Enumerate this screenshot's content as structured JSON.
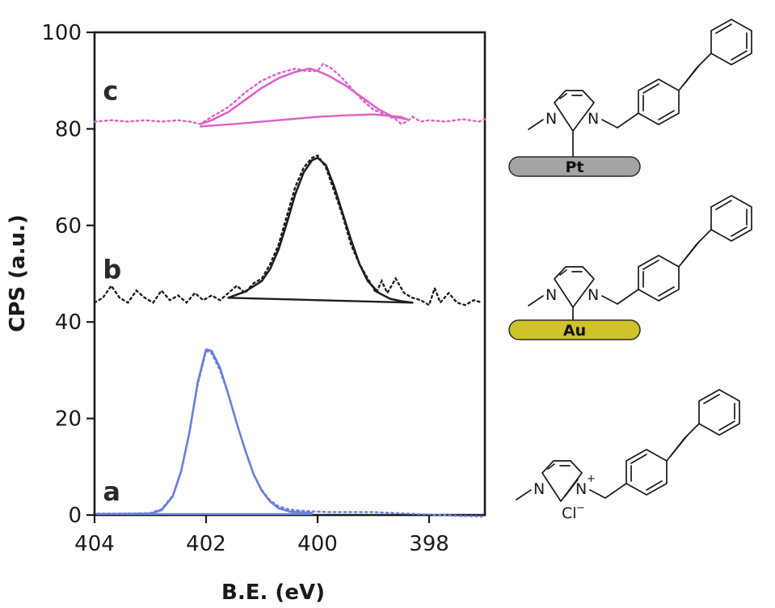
{
  "chart_data": {
    "type": "line",
    "xlabel": "B.E. (eV)",
    "ylabel": "CPS (a.u.)",
    "xlim": [
      404,
      397
    ],
    "ylim": [
      0,
      100
    ],
    "x_reversed": true,
    "xticks": [
      "404",
      "402",
      "400",
      "398"
    ],
    "yticks": [
      "0",
      "20",
      "40",
      "60",
      "80",
      "100"
    ],
    "grid": false,
    "curves": [
      {
        "tag": "a",
        "color": "#6b7fe0",
        "data_label": {
          "x": 403.85,
          "y": 3
        },
        "measured": [
          [
            403.95,
            0.3
          ],
          [
            403.5,
            0.3
          ],
          [
            403.0,
            0.4
          ],
          [
            402.8,
            1.2
          ],
          [
            402.6,
            4
          ],
          [
            402.45,
            9
          ],
          [
            402.3,
            17
          ],
          [
            402.15,
            27
          ],
          [
            402.0,
            34
          ],
          [
            401.9,
            33.5
          ],
          [
            401.75,
            30
          ],
          [
            401.6,
            25
          ],
          [
            401.45,
            19
          ],
          [
            401.3,
            13.5
          ],
          [
            401.15,
            8.5
          ],
          [
            401.0,
            5.2
          ],
          [
            400.85,
            3
          ],
          [
            400.7,
            1.8
          ],
          [
            400.5,
            1.1
          ],
          [
            400.2,
            0.8
          ],
          [
            399.8,
            0.6
          ],
          [
            399.4,
            0.6
          ],
          [
            399.0,
            0.6
          ],
          [
            398.6,
            0.4
          ],
          [
            398.2,
            0.2
          ],
          [
            397.8,
            0
          ],
          [
            397.4,
            -0.2
          ],
          [
            397.05,
            -0.3
          ]
        ],
        "fit": [
          [
            403.95,
            0.2
          ],
          [
            403.0,
            0.3
          ],
          [
            402.8,
            1.0
          ],
          [
            402.6,
            3.8
          ],
          [
            402.45,
            9
          ],
          [
            402.3,
            17
          ],
          [
            402.15,
            27.5
          ],
          [
            402.0,
            34.3
          ],
          [
            401.9,
            34
          ],
          [
            401.75,
            30.5
          ],
          [
            401.6,
            25
          ],
          [
            401.45,
            19
          ],
          [
            401.3,
            13.5
          ],
          [
            401.15,
            8.5
          ],
          [
            401.0,
            5
          ],
          [
            400.85,
            2.8
          ],
          [
            400.7,
            1.4
          ],
          [
            400.5,
            0.7
          ],
          [
            400.1,
            0.4
          ]
        ],
        "baseline": [
          [
            403.95,
            0.2
          ],
          [
            400.1,
            0.2
          ]
        ]
      },
      {
        "tag": "b",
        "color": "#1e1e1e",
        "data_label": {
          "x": 403.85,
          "y": 49
        },
        "measured": [
          [
            404.0,
            44
          ],
          [
            403.85,
            45
          ],
          [
            403.7,
            47.5
          ],
          [
            403.55,
            45
          ],
          [
            403.4,
            44
          ],
          [
            403.25,
            46.5
          ],
          [
            403.1,
            45
          ],
          [
            402.95,
            44
          ],
          [
            402.8,
            46.5
          ],
          [
            402.65,
            44.5
          ],
          [
            402.5,
            45.5
          ],
          [
            402.35,
            44
          ],
          [
            402.2,
            46
          ],
          [
            402.05,
            44.5
          ],
          [
            401.9,
            45.5
          ],
          [
            401.75,
            44.5
          ],
          [
            401.6,
            46
          ],
          [
            401.45,
            47.5
          ],
          [
            401.3,
            46
          ],
          [
            401.15,
            48
          ],
          [
            401.0,
            49
          ],
          [
            400.85,
            52
          ],
          [
            400.7,
            56
          ],
          [
            400.55,
            62
          ],
          [
            400.4,
            68
          ],
          [
            400.25,
            72
          ],
          [
            400.1,
            74
          ],
          [
            400.0,
            74.5
          ],
          [
            399.85,
            72
          ],
          [
            399.7,
            67
          ],
          [
            399.55,
            62
          ],
          [
            399.4,
            56
          ],
          [
            399.25,
            52
          ],
          [
            399.1,
            49
          ],
          [
            398.95,
            46
          ],
          [
            398.85,
            48.5
          ],
          [
            398.75,
            46
          ],
          [
            398.6,
            49
          ],
          [
            398.45,
            46
          ],
          [
            398.3,
            45
          ],
          [
            398.15,
            44.5
          ],
          [
            398.0,
            43.5
          ],
          [
            397.9,
            47
          ],
          [
            397.8,
            44
          ],
          [
            397.65,
            46
          ],
          [
            397.5,
            44
          ],
          [
            397.35,
            43.5
          ],
          [
            397.2,
            44.5
          ],
          [
            397.05,
            44
          ]
        ],
        "fit": [
          [
            401.6,
            45
          ],
          [
            401.3,
            46.3
          ],
          [
            401.0,
            48.5
          ],
          [
            400.85,
            51
          ],
          [
            400.7,
            55
          ],
          [
            400.55,
            60.5
          ],
          [
            400.4,
            66.5
          ],
          [
            400.25,
            71
          ],
          [
            400.1,
            73.5
          ],
          [
            400.0,
            74
          ],
          [
            399.85,
            72.5
          ],
          [
            399.7,
            68
          ],
          [
            399.55,
            62.5
          ],
          [
            399.4,
            57
          ],
          [
            399.25,
            52
          ],
          [
            399.1,
            48.5
          ],
          [
            398.9,
            46
          ],
          [
            398.7,
            44.8
          ],
          [
            398.5,
            44.3
          ],
          [
            398.3,
            44.0
          ]
        ],
        "baseline": [
          [
            401.6,
            45
          ],
          [
            398.3,
            44.0
          ]
        ]
      },
      {
        "tag": "c",
        "color": "#e060c8",
        "data_label": {
          "x": 403.85,
          "y": 86
        },
        "measured": [
          [
            404.0,
            81.5
          ],
          [
            403.7,
            81.8
          ],
          [
            403.4,
            81.5
          ],
          [
            403.1,
            81.8
          ],
          [
            402.8,
            81.5
          ],
          [
            402.5,
            81.8
          ],
          [
            402.3,
            81.5
          ],
          [
            402.1,
            81
          ],
          [
            401.9,
            82.5
          ],
          [
            401.6,
            84.5
          ],
          [
            401.3,
            87.5
          ],
          [
            401.0,
            90
          ],
          [
            400.7,
            91.5
          ],
          [
            400.4,
            92.5
          ],
          [
            400.2,
            92
          ],
          [
            400.0,
            92
          ],
          [
            399.9,
            93.5
          ],
          [
            399.75,
            92.5
          ],
          [
            399.6,
            91
          ],
          [
            399.4,
            88.5
          ],
          [
            399.2,
            86
          ],
          [
            399.0,
            84
          ],
          [
            398.8,
            83
          ],
          [
            398.6,
            82
          ],
          [
            398.5,
            81
          ],
          [
            398.4,
            81.5
          ],
          [
            398.3,
            82.5
          ],
          [
            398.15,
            81.5
          ],
          [
            398.0,
            81.8
          ],
          [
            397.7,
            81.5
          ],
          [
            397.4,
            82
          ],
          [
            397.1,
            81.5
          ],
          [
            397.0,
            82
          ]
        ],
        "fit": [
          [
            402.1,
            81
          ],
          [
            401.9,
            81.8
          ],
          [
            401.6,
            83.5
          ],
          [
            401.3,
            86
          ],
          [
            401.0,
            88.5
          ],
          [
            400.7,
            90.5
          ],
          [
            400.4,
            91.8
          ],
          [
            400.15,
            92.5
          ],
          [
            400.0,
            92
          ],
          [
            399.8,
            91
          ],
          [
            399.5,
            89
          ],
          [
            399.2,
            86.5
          ],
          [
            398.9,
            84
          ],
          [
            398.65,
            82.5
          ],
          [
            398.4,
            82
          ]
        ],
        "baseline": [
          [
            402.1,
            80.5
          ],
          [
            401.5,
            81
          ],
          [
            401.0,
            81.5
          ],
          [
            400.5,
            82
          ],
          [
            400.0,
            82.5
          ],
          [
            399.5,
            82.8
          ],
          [
            399.0,
            83
          ],
          [
            398.5,
            82.5
          ],
          [
            398.4,
            82
          ]
        ]
      }
    ]
  },
  "structures": {
    "top": {
      "metal": "Pt",
      "metal_color": "#a4a4a4",
      "atoms": [
        "N",
        "N"
      ]
    },
    "middle": {
      "metal": "Au",
      "metal_color": "#cfc22a",
      "atoms": [
        "N",
        "N"
      ]
    },
    "bottom": {
      "atoms": [
        "N",
        "N"
      ],
      "cation_charge": "+",
      "counterion": "Cl",
      "counterion_charge": "−"
    }
  }
}
